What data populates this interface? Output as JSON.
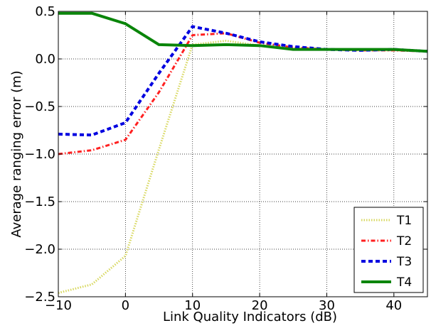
{
  "chart_data": {
    "type": "line",
    "xlabel": "Link Quality Indicators (dB)",
    "ylabel": "Average ranging error (m)",
    "xlim": [
      -10,
      45
    ],
    "ylim": [
      -2.5,
      0.5
    ],
    "xticks": [
      -10,
      0,
      10,
      20,
      30,
      40
    ],
    "xtick_labels": [
      "−10",
      "0",
      "10",
      "20",
      "30",
      "40"
    ],
    "yticks": [
      0.5,
      0.0,
      -0.5,
      -1.0,
      -1.5,
      -2.0,
      -2.5
    ],
    "ytick_labels": [
      "0.5",
      "0.0",
      "−0.5",
      "−1.0",
      "−1.5",
      "−2.0",
      "−2.5"
    ],
    "grid": true,
    "legend_position": "bottom-right",
    "x": [
      -10,
      -5,
      0,
      5,
      10,
      15,
      20,
      25,
      30,
      35,
      40,
      45
    ],
    "series": [
      {
        "name": "T1",
        "color": "#d8d860",
        "style": "dotted",
        "values": [
          -2.46,
          -2.37,
          -2.07,
          -0.95,
          0.15,
          0.19,
          0.14,
          0.11,
          0.1,
          0.09,
          0.09,
          0.08
        ]
      },
      {
        "name": "T2",
        "color": "#ff2020",
        "style": "dashdot",
        "values": [
          -1.0,
          -0.96,
          -0.85,
          -0.35,
          0.25,
          0.27,
          0.17,
          0.12,
          0.1,
          0.09,
          0.09,
          0.08
        ]
      },
      {
        "name": "T3",
        "color": "#0000e0",
        "style": "dashed",
        "values": [
          -0.79,
          -0.8,
          -0.67,
          -0.15,
          0.34,
          0.27,
          0.18,
          0.13,
          0.1,
          0.09,
          0.1,
          0.08
        ]
      },
      {
        "name": "T4",
        "color": "#0a850a",
        "style": "solid",
        "values": [
          0.48,
          0.48,
          0.37,
          0.15,
          0.14,
          0.15,
          0.14,
          0.1,
          0.1,
          0.1,
          0.1,
          0.08
        ]
      }
    ]
  }
}
